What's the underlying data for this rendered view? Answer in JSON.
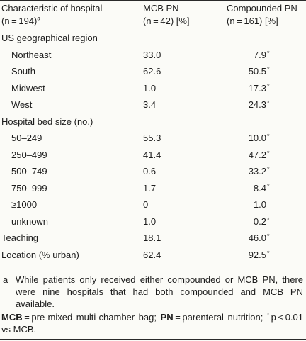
{
  "header": {
    "col1_line1": "Characteristic of hospital",
    "col1_line2": "(n = 194)",
    "col1_sup": "a",
    "col2_line1": "MCB PN",
    "col2_line2": "(n = 42) [%]",
    "col3_line1": "Compounded PN",
    "col3_line2": "(n = 161) [%]"
  },
  "rows": [
    {
      "label": "US geographical region",
      "indent": false,
      "mcb": "",
      "comp": "",
      "star": ""
    },
    {
      "label": "Northeast",
      "indent": true,
      "mcb": "33.0",
      "comp": "7.9",
      "star": "*"
    },
    {
      "label": "South",
      "indent": true,
      "mcb": "62.6",
      "comp": "50.5",
      "star": "*"
    },
    {
      "label": "Midwest",
      "indent": true,
      "mcb": "1.0",
      "comp": "17.3",
      "star": "*"
    },
    {
      "label": "West",
      "indent": true,
      "mcb": "3.4",
      "comp": "24.3",
      "star": "*"
    },
    {
      "label": "Hospital bed size (no.)",
      "indent": false,
      "mcb": "",
      "comp": "",
      "star": ""
    },
    {
      "label": "50–249",
      "indent": true,
      "mcb": "55.3",
      "comp": "10.0",
      "star": "*"
    },
    {
      "label": "250–499",
      "indent": true,
      "mcb": "41.4",
      "comp": "47.2",
      "star": "*"
    },
    {
      "label": "500–749",
      "indent": true,
      "mcb": "0.6",
      "comp": "33.2",
      "star": "*"
    },
    {
      "label": "750–999",
      "indent": true,
      "mcb": "1.7",
      "comp": "8.4",
      "star": "*"
    },
    {
      "label": "≥1000",
      "indent": true,
      "mcb": "0",
      "comp": "1.0",
      "star": ""
    },
    {
      "label": "unknown",
      "indent": true,
      "mcb": "1.0",
      "comp": "0.2",
      "star": "*"
    },
    {
      "label": "Teaching",
      "indent": false,
      "mcb": "18.1",
      "comp": "46.0",
      "star": "*"
    },
    {
      "label": "Location (% urban)",
      "indent": false,
      "mcb": "62.4",
      "comp": "92.5",
      "star": "*"
    }
  ],
  "footnote_a": {
    "marker": "a",
    "text": "While patients only received either compounded or MCB PN, there were nine hospitals that had both compounded and MCB PN available."
  },
  "abbrev": {
    "mcb_term": "MCB",
    "mcb_def": " = pre-mixed multi-chamber bag; ",
    "pn_term": "PN",
    "pn_def": " = parenteral nutrition;",
    "sig_star": "*",
    "sig_text": " p < 0.01 vs MCB."
  }
}
